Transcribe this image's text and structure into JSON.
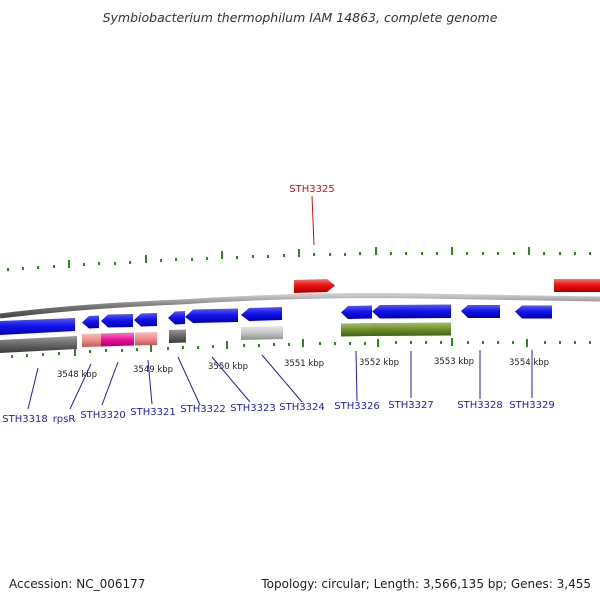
{
  "title": "Symbiobacterium thermophilum IAM 14863, complete genome",
  "footer": {
    "accession": "Accession: NC_006177",
    "summary": "Topology: circular; Length: 3,566,135 bp; Genes: 3,455"
  },
  "scale_labels": [
    "3548 kbp",
    "3549 kbp",
    "3550 kbp",
    "3551 kbp",
    "3552 kbp",
    "3553 kbp",
    "3554 kbp"
  ],
  "gene_labels": [
    {
      "id": "STH3325",
      "color": "#cc1111"
    },
    {
      "id": "STH3318",
      "color": "#1f1faa"
    },
    {
      "id": "rpsR",
      "color": "#1f1faa"
    },
    {
      "id": "STH3320",
      "color": "#1f1faa"
    },
    {
      "id": "STH3321",
      "color": "#1f1faa"
    },
    {
      "id": "STH3322",
      "color": "#1f1faa"
    },
    {
      "id": "STH3323",
      "color": "#1f1faa"
    },
    {
      "id": "STH3324",
      "color": "#1f1faa"
    },
    {
      "id": "STH3326",
      "color": "#1f1faa"
    },
    {
      "id": "STH3327",
      "color": "#1f1faa"
    },
    {
      "id": "STH3328",
      "color": "#1f1faa"
    },
    {
      "id": "STH3329",
      "color": "#1f1faa"
    }
  ],
  "colors": {
    "forward_gene": "#ee1111",
    "reverse_gene": "#1111ee",
    "backbone": "#8a8a8a",
    "tick": "#2a8a1a"
  }
}
